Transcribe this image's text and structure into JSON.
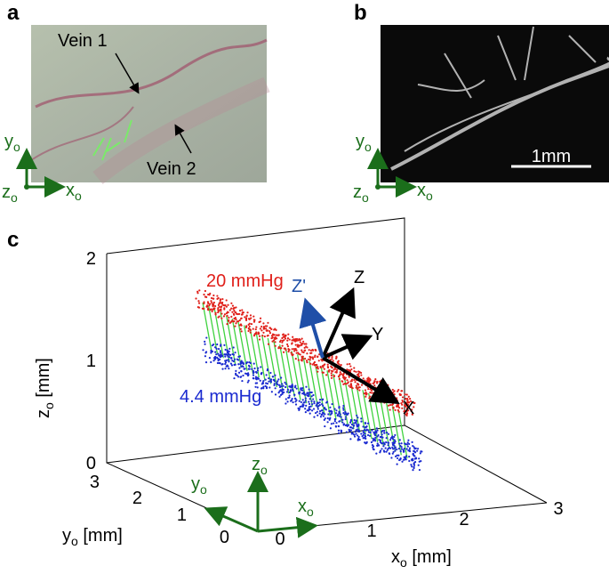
{
  "panel_a": {
    "letter": "a",
    "annotations": [
      "Vein 1",
      "Vein 2"
    ],
    "axes": {
      "y": {
        "main": "y",
        "sub": "o"
      },
      "z": {
        "main": "z",
        "sub": "o"
      },
      "x": {
        "main": "x",
        "sub": "o"
      }
    }
  },
  "panel_b": {
    "letter": "b",
    "scale_bar": "1mm",
    "axes": {
      "y": {
        "main": "y",
        "sub": "o"
      },
      "z": {
        "main": "z",
        "sub": "o"
      },
      "x": {
        "main": "x",
        "sub": "o"
      }
    }
  },
  "panel_c": {
    "letter": "c",
    "z_axis_label": {
      "main": "z",
      "sub": "o",
      "unit": " [mm]"
    },
    "y_axis_label": {
      "main": "y",
      "sub": "o",
      "unit": " [mm]"
    },
    "x_axis_label": {
      "main": "x",
      "sub": "o",
      "unit": " [mm]"
    },
    "z_ticks": [
      "0",
      "1",
      "2"
    ],
    "y_ticks": [
      "3",
      "2",
      "1",
      "0"
    ],
    "x_ticks": [
      "0",
      "1",
      "2",
      "3"
    ],
    "pressures": [
      "20 mmHg",
      "4.4 mmHg"
    ],
    "frame_labels": [
      "X",
      "Y",
      "Z",
      "Z'"
    ],
    "origin_axes": {
      "z": {
        "main": "z",
        "sub": "o"
      },
      "y": {
        "main": "y",
        "sub": "o"
      },
      "x": {
        "main": "x",
        "sub": "o"
      }
    }
  }
}
